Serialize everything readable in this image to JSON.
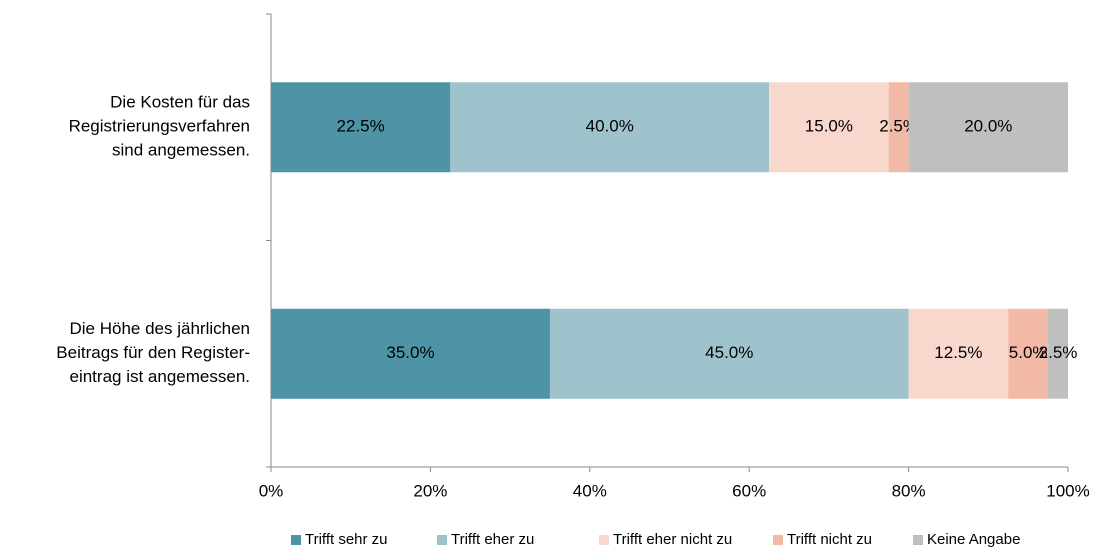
{
  "chart_data": {
    "type": "stacked-barh",
    "categories": [
      [
        "Die Kosten für das",
        "Registrierungsverfahren",
        "sind angemessen."
      ],
      [
        "Die Höhe des jährlichen",
        "Beitrags für den Register-",
        "eintrag ist angemessen."
      ]
    ],
    "series": [
      {
        "name": "Trifft sehr zu",
        "color": "#4e94a6",
        "values": [
          22.5,
          35.0
        ],
        "value_labels": [
          "22.5%",
          "35.0%"
        ]
      },
      {
        "name": "Trifft eher zu",
        "color": "#9fc3cc",
        "values": [
          40.0,
          45.0
        ],
        "value_labels": [
          "40.0%",
          "45.0%"
        ]
      },
      {
        "name": "Trifft eher nicht zu",
        "color": "#f8d8cc",
        "values": [
          15.0,
          12.5
        ],
        "value_labels": [
          "15.0%",
          "12.5%"
        ]
      },
      {
        "name": "Trifft nicht zu",
        "color": "#f2b9a6",
        "values": [
          2.5,
          5.0
        ],
        "value_labels": [
          "2.5%",
          "5.0%"
        ]
      },
      {
        "name": "Keine Angabe",
        "color": "#bfbfbf",
        "values": [
          20.0,
          2.5
        ],
        "value_labels": [
          "20.0%",
          "2.5%"
        ]
      }
    ],
    "xlim": [
      0,
      100
    ],
    "xticks": [
      {
        "value": 0,
        "label": "0%"
      },
      {
        "value": 20,
        "label": "20%"
      },
      {
        "value": 40,
        "label": "40%"
      },
      {
        "value": 60,
        "label": "60%"
      },
      {
        "value": 80,
        "label": "80%"
      },
      {
        "value": 100,
        "label": "100%"
      }
    ],
    "legend": "bottom"
  }
}
